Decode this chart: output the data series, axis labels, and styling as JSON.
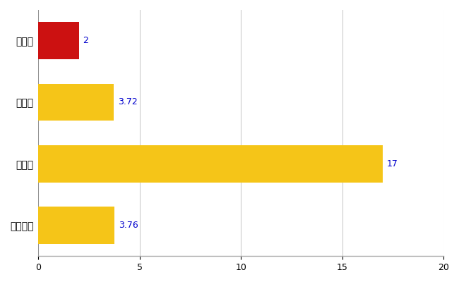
{
  "categories": [
    "多気町",
    "県平均",
    "県最大",
    "全国平均"
  ],
  "values": [
    2,
    3.72,
    17,
    3.76
  ],
  "bar_colors": [
    "#cc1111",
    "#f5c518",
    "#f5c518",
    "#f5c518"
  ],
  "value_labels": [
    "2",
    "3.72",
    "17",
    "3.76"
  ],
  "xlim": [
    0,
    20
  ],
  "xticks": [
    0,
    5,
    10,
    15,
    20
  ],
  "background_color": "#ffffff",
  "grid_color": "#cccccc",
  "label_color": "#0000cc",
  "tick_label_color": "#000000",
  "bar_height": 0.6
}
